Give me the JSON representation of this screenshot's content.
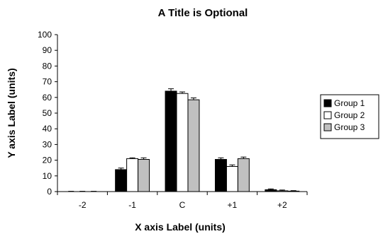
{
  "chart_data": {
    "type": "bar",
    "title": "A Title is Optional",
    "xlabel": "X axis Label (units)",
    "ylabel": "Y axis Label (units)",
    "ylim": [
      0,
      100
    ],
    "yticks": [
      0,
      10,
      20,
      30,
      40,
      50,
      60,
      70,
      80,
      90,
      100
    ],
    "categories": [
      "-2",
      "-1",
      "C",
      "+1",
      "+2"
    ],
    "grid": false,
    "legend_position": "right",
    "series": [
      {
        "name": "Group 1",
        "color": "#000000",
        "values": [
          0,
          14,
          64,
          20.5,
          1.2
        ],
        "errors": [
          0.2,
          1.0,
          1.5,
          1.0,
          0.5
        ]
      },
      {
        "name": "Group 2",
        "color": "#ffffff",
        "values": [
          0,
          21,
          62.5,
          16,
          0.5
        ],
        "errors": [
          0.2,
          0.5,
          1.0,
          1.0,
          0.5
        ]
      },
      {
        "name": "Group 3",
        "color": "#c0c0c0",
        "values": [
          0,
          20.5,
          58.5,
          21,
          0.3
        ],
        "errors": [
          0.2,
          1.0,
          1.2,
          1.0,
          0.3
        ]
      }
    ]
  }
}
